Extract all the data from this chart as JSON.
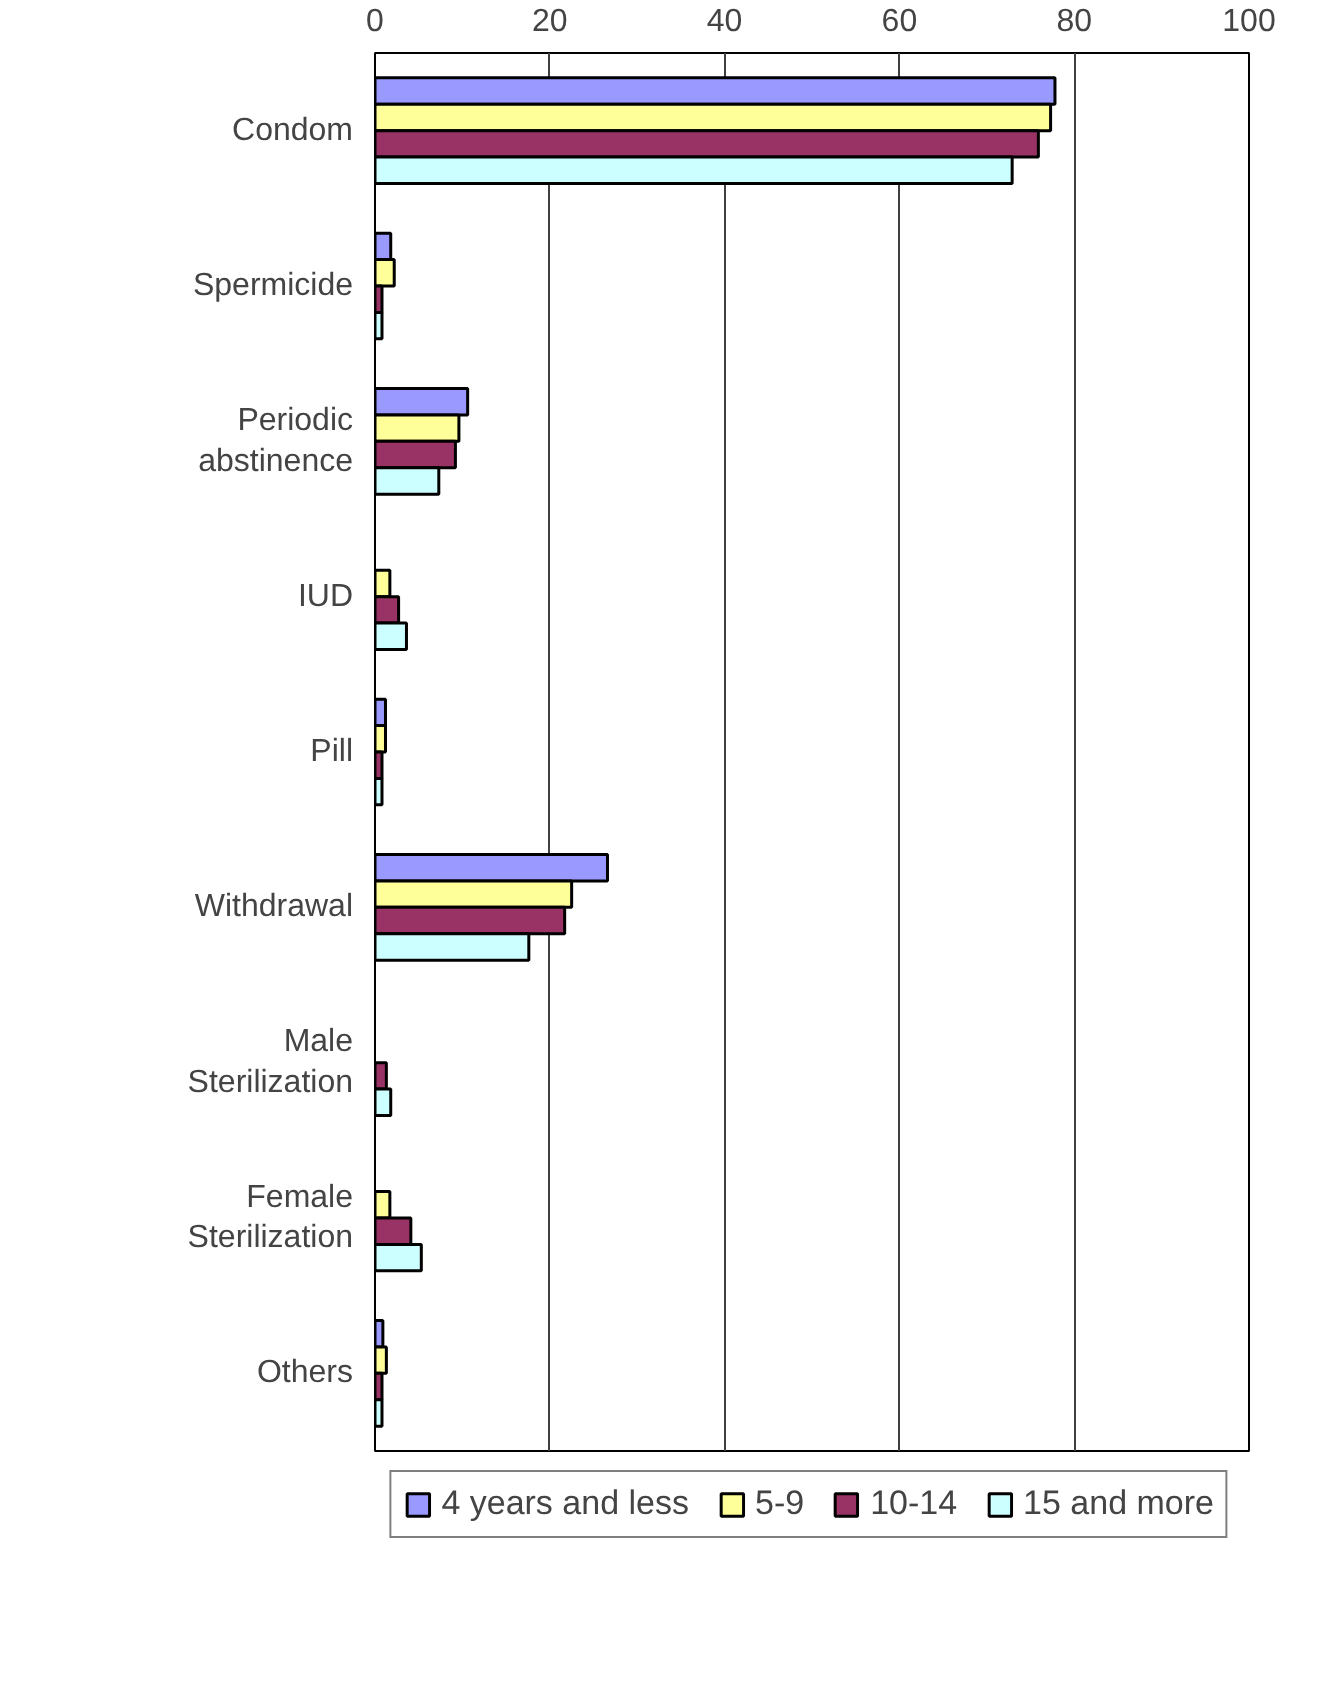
{
  "chart_data": {
    "type": "bar",
    "orientation": "horizontal",
    "categories": [
      "Condom",
      "Spermicide",
      "Periodic abstinence",
      "IUD",
      "Pill",
      "Withdrawal",
      "Male Sterilization",
      "Female Sterilization",
      "Others"
    ],
    "series": [
      {
        "name": "4 years and less",
        "color": "#9999ff",
        "values": [
          77.8,
          1.8,
          10.6,
          null,
          1.2,
          26.6,
          null,
          null,
          0.9
        ]
      },
      {
        "name": "5-9",
        "color": "#ffff99",
        "values": [
          77.3,
          2.2,
          9.6,
          1.7,
          1.2,
          22.5,
          null,
          1.7,
          1.3
        ]
      },
      {
        "name": "10-14",
        "color": "#993366",
        "values": [
          75.9,
          0.8,
          9.2,
          2.7,
          0.8,
          21.7,
          1.3,
          4.1,
          0.8
        ]
      },
      {
        "name": "15 and more",
        "color": "#ccffff",
        "values": [
          72.9,
          0.8,
          7.3,
          3.6,
          0.8,
          17.6,
          1.8,
          5.3,
          0.8
        ]
      }
    ],
    "xlim": [
      0,
      100
    ],
    "xticks": [
      0,
      20,
      40,
      60,
      80,
      100
    ],
    "grid": "x",
    "legend": "bottom"
  }
}
